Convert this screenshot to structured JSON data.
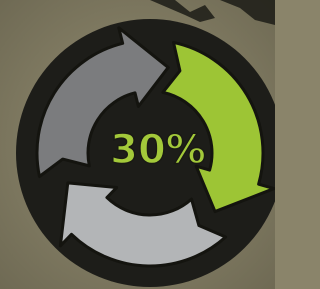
{
  "label": "30%"
}
